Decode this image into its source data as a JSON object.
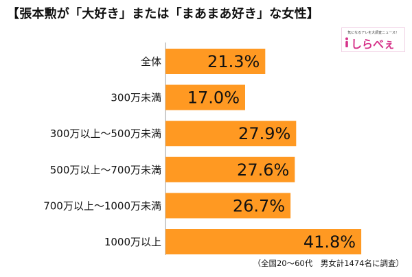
{
  "title": "【張本勲が「大好き」または「まあまあ好き」な女性】",
  "logo": {
    "text": "しらべぇ",
    "tagline": "気になるアレを大調査ニュース！"
  },
  "note": "（全国20～60代　男女計1474名に調査）",
  "colors": {
    "bar": "#ff9922",
    "logo_accent": "#d6338a"
  },
  "chart_data": {
    "type": "bar",
    "orientation": "horizontal",
    "categories": [
      "全体",
      "300万未満",
      "300万以上～500万未満",
      "500万以上～700万未満",
      "700万以上～1000万未満",
      "1000万以上"
    ],
    "values": [
      21.3,
      17.0,
      27.9,
      27.6,
      26.7,
      41.8
    ],
    "value_labels": [
      "21.3%",
      "17.0%",
      "27.9%",
      "27.6%",
      "26.7%",
      "41.8%"
    ],
    "unit": "%",
    "xlim": [
      0,
      50
    ],
    "grid": false,
    "legend": "none"
  }
}
